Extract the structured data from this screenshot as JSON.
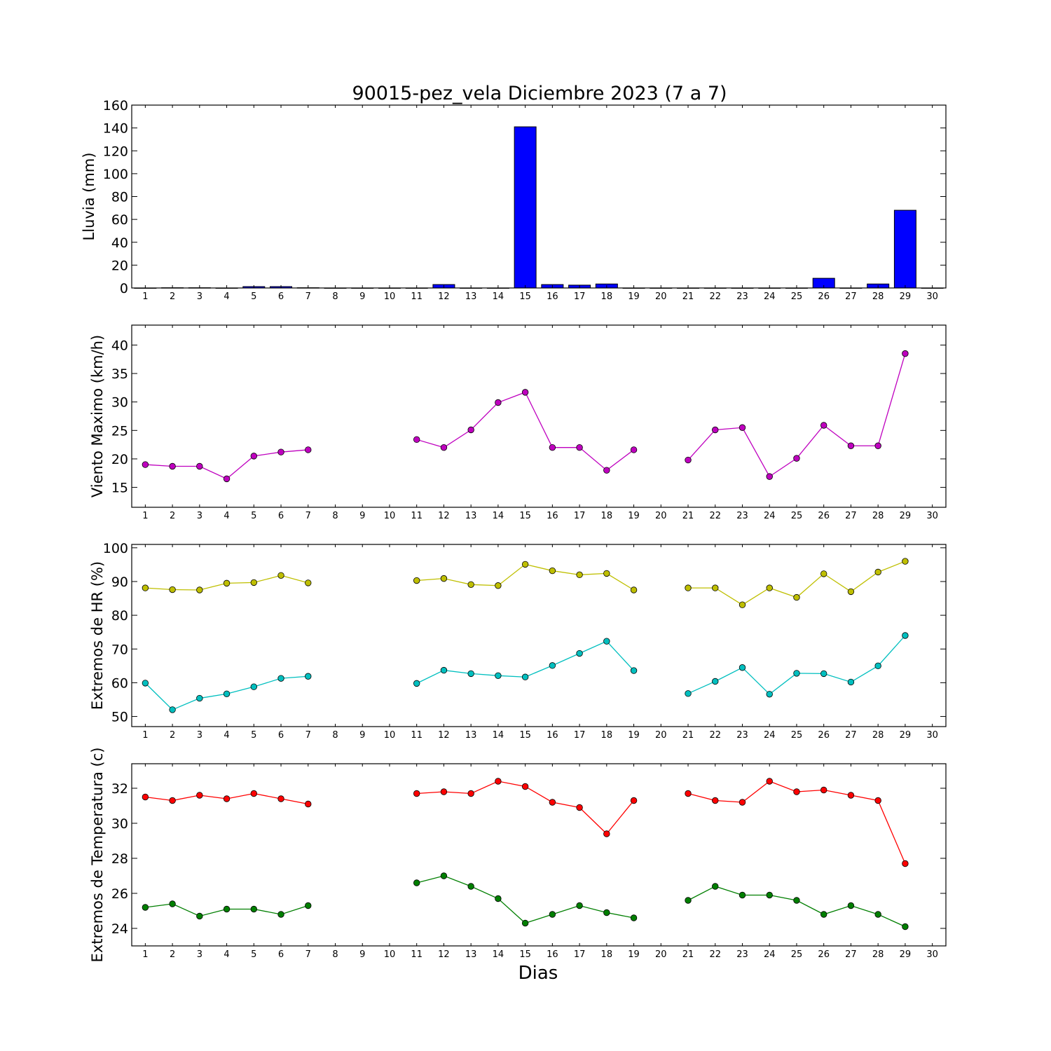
{
  "figure": {
    "title": "90015-pez_vela Diciembre 2023  (7 a 7)",
    "xlabel": "Dias"
  },
  "chart_data": [
    {
      "type": "bar",
      "ylabel": "Lluvia (mm)",
      "xlim": [
        0.5,
        30.5
      ],
      "ylim": [
        0,
        160
      ],
      "x_ticks": [
        1,
        2,
        3,
        4,
        5,
        6,
        7,
        8,
        9,
        10,
        11,
        12,
        13,
        14,
        15,
        16,
        17,
        18,
        19,
        20,
        21,
        22,
        23,
        24,
        25,
        26,
        27,
        28,
        29,
        30
      ],
      "y_ticks": [
        0,
        20,
        40,
        60,
        80,
        100,
        120,
        140,
        160
      ],
      "grid": false,
      "series": [
        {
          "color": "#0000ff",
          "x": [
            1,
            2,
            3,
            4,
            5,
            6,
            7,
            8,
            9,
            10,
            11,
            12,
            13,
            14,
            15,
            16,
            17,
            18,
            19,
            20,
            21,
            22,
            23,
            24,
            25,
            26,
            27,
            28,
            29,
            30
          ],
          "values": [
            0,
            0.2,
            0.2,
            0,
            1.2,
            1.2,
            0.2,
            0,
            0,
            0,
            0,
            3,
            0,
            0,
            141,
            3,
            2.5,
            3.5,
            0,
            0,
            0,
            0,
            0,
            0,
            0,
            8.5,
            0,
            3.5,
            68,
            0
          ]
        }
      ]
    },
    {
      "type": "line",
      "ylabel": "Viento Maximo (km/h)",
      "xlim": [
        0.5,
        30.5
      ],
      "ylim": [
        11.5,
        43.5
      ],
      "x_ticks": [
        1,
        2,
        3,
        4,
        5,
        6,
        7,
        8,
        9,
        10,
        11,
        12,
        13,
        14,
        15,
        16,
        17,
        18,
        19,
        20,
        21,
        22,
        23,
        24,
        25,
        26,
        27,
        28,
        29,
        30
      ],
      "y_ticks": [
        15,
        20,
        25,
        30,
        35,
        40
      ],
      "grid": false,
      "series": [
        {
          "color": "#bf00bf",
          "x": [
            1,
            2,
            3,
            4,
            5,
            6,
            7,
            8,
            9,
            10,
            11,
            12,
            13,
            14,
            15,
            16,
            17,
            18,
            19,
            20,
            21,
            22,
            23,
            24,
            25,
            26,
            27,
            28,
            29,
            30
          ],
          "values": [
            19.0,
            18.7,
            18.7,
            16.5,
            20.5,
            21.2,
            21.6,
            null,
            null,
            null,
            23.4,
            22.0,
            25.1,
            29.9,
            31.7,
            22.0,
            22.0,
            18.0,
            21.6,
            null,
            19.8,
            25.1,
            25.5,
            16.9,
            20.1,
            25.9,
            22.3,
            22.3,
            38.5,
            null
          ]
        }
      ]
    },
    {
      "type": "line",
      "ylabel": "Extremos de HR (%)",
      "xlim": [
        0.5,
        30.5
      ],
      "ylim": [
        47,
        101
      ],
      "x_ticks": [
        1,
        2,
        3,
        4,
        5,
        6,
        7,
        8,
        9,
        10,
        11,
        12,
        13,
        14,
        15,
        16,
        17,
        18,
        19,
        20,
        21,
        22,
        23,
        24,
        25,
        26,
        27,
        28,
        29,
        30
      ],
      "y_ticks": [
        50,
        60,
        70,
        80,
        90,
        100
      ],
      "grid": false,
      "series": [
        {
          "color": "#bfbf00",
          "x": [
            1,
            2,
            3,
            4,
            5,
            6,
            7,
            8,
            9,
            10,
            11,
            12,
            13,
            14,
            15,
            16,
            17,
            18,
            19,
            20,
            21,
            22,
            23,
            24,
            25,
            26,
            27,
            28,
            29,
            30
          ],
          "values": [
            88.1,
            87.6,
            87.5,
            89.5,
            89.7,
            91.8,
            89.6,
            null,
            null,
            null,
            90.3,
            90.9,
            89.1,
            88.8,
            95.1,
            93.2,
            92.0,
            92.4,
            87.5,
            null,
            88.1,
            88.1,
            83.1,
            88.1,
            85.3,
            92.3,
            87.0,
            92.8,
            96.0,
            null
          ]
        },
        {
          "color": "#00bfbf",
          "x": [
            1,
            2,
            3,
            4,
            5,
            6,
            7,
            8,
            9,
            10,
            11,
            12,
            13,
            14,
            15,
            16,
            17,
            18,
            19,
            20,
            21,
            22,
            23,
            24,
            25,
            26,
            27,
            28,
            29,
            30
          ],
          "values": [
            59.9,
            52.0,
            55.4,
            56.7,
            58.8,
            61.3,
            61.9,
            null,
            null,
            null,
            59.8,
            63.7,
            62.7,
            62.1,
            61.7,
            65.1,
            68.7,
            72.3,
            63.6,
            null,
            56.8,
            60.4,
            64.5,
            56.6,
            62.8,
            62.7,
            60.2,
            65.0,
            74.0,
            null
          ]
        }
      ]
    },
    {
      "type": "line",
      "ylabel": "Extremos de Temperatura (c)",
      "xlim": [
        0.5,
        30.5
      ],
      "ylim": [
        23.0,
        33.4
      ],
      "x_ticks": [
        1,
        2,
        3,
        4,
        5,
        6,
        7,
        8,
        9,
        10,
        11,
        12,
        13,
        14,
        15,
        16,
        17,
        18,
        19,
        20,
        21,
        22,
        23,
        24,
        25,
        26,
        27,
        28,
        29,
        30
      ],
      "y_ticks": [
        24,
        26,
        28,
        30,
        32
      ],
      "grid": false,
      "series": [
        {
          "color": "#ff0000",
          "x": [
            1,
            2,
            3,
            4,
            5,
            6,
            7,
            8,
            9,
            10,
            11,
            12,
            13,
            14,
            15,
            16,
            17,
            18,
            19,
            20,
            21,
            22,
            23,
            24,
            25,
            26,
            27,
            28,
            29,
            30
          ],
          "values": [
            31.5,
            31.3,
            31.6,
            31.4,
            31.7,
            31.4,
            31.1,
            null,
            null,
            null,
            31.7,
            31.8,
            31.7,
            32.4,
            32.1,
            31.2,
            30.9,
            29.4,
            31.3,
            null,
            31.7,
            31.3,
            31.2,
            32.4,
            31.8,
            31.9,
            31.6,
            31.3,
            27.7,
            null
          ]
        },
        {
          "color": "#007f00",
          "x": [
            1,
            2,
            3,
            4,
            5,
            6,
            7,
            8,
            9,
            10,
            11,
            12,
            13,
            14,
            15,
            16,
            17,
            18,
            19,
            20,
            21,
            22,
            23,
            24,
            25,
            26,
            27,
            28,
            29,
            30
          ],
          "values": [
            25.2,
            25.4,
            24.7,
            25.1,
            25.1,
            24.8,
            25.3,
            null,
            null,
            null,
            26.6,
            27.0,
            26.4,
            25.7,
            24.3,
            24.8,
            25.3,
            24.9,
            24.6,
            null,
            25.6,
            26.4,
            25.9,
            25.9,
            25.6,
            24.8,
            25.3,
            24.8,
            24.1,
            null
          ]
        }
      ]
    }
  ]
}
